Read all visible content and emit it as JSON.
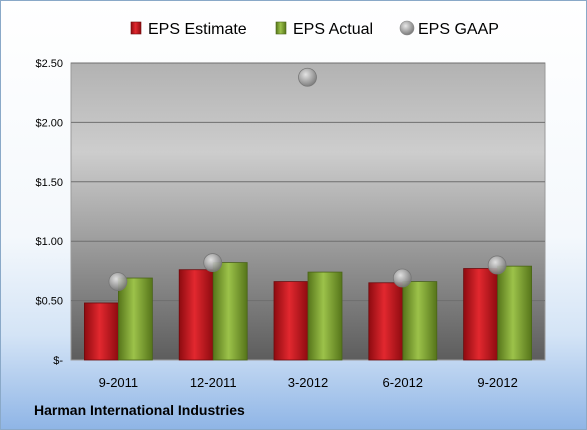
{
  "company_name": "Harman International Industries",
  "chart_data": {
    "type": "bar",
    "categories": [
      "9-2011",
      "12-2011",
      "3-2012",
      "6-2012",
      "9-2012"
    ],
    "series": [
      {
        "name": "EPS Estimate",
        "kind": "bar",
        "color": "#c0141c",
        "values": [
          0.48,
          0.76,
          0.66,
          0.65,
          0.77
        ]
      },
      {
        "name": "EPS Actual",
        "kind": "bar",
        "color": "#7a9e2e",
        "values": [
          0.69,
          0.82,
          0.74,
          0.66,
          0.79
        ]
      },
      {
        "name": "EPS GAAP",
        "kind": "marker",
        "color": "#a8a8a8",
        "values": [
          0.66,
          0.82,
          2.38,
          0.69,
          0.8
        ]
      }
    ],
    "ylim": [
      0,
      2.5
    ],
    "yticks": [
      0,
      0.5,
      1.0,
      1.5,
      2.0,
      2.5
    ],
    "ytick_labels": [
      "$-",
      "$0.50",
      "$1.00",
      "$1.50",
      "$2.00",
      "$2.50"
    ],
    "grid": true,
    "legend_position": "top"
  }
}
